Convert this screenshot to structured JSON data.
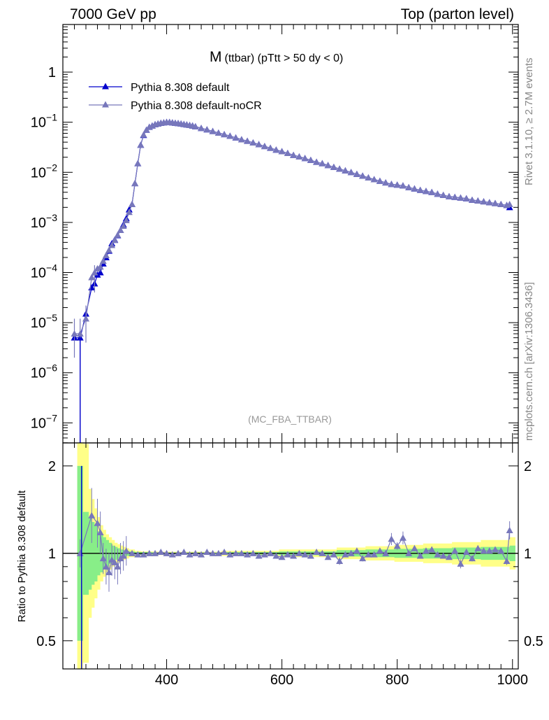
{
  "header": {
    "left": "7000 GeV pp",
    "right": "Top (parton level)"
  },
  "side_labels": {
    "rivet": "Rivet 3.1.10, ≥ 2.7M events",
    "mcplots": "mcplots.cern.ch [arXiv:1306.3436]"
  },
  "chart_data": [
    {
      "type": "line",
      "title_main": "M",
      "title_sub": "(ttbar) (pTtt > 50 dy < 0)",
      "watermark": "(MC_FBA_TTBAR)",
      "log_y": true,
      "xlim": [
        220,
        1010
      ],
      "ylim_exp": [
        -7.4,
        0.95
      ],
      "y_tick_labels": [
        {
          "exp": -7,
          "base": "10",
          "sup": "−7"
        },
        {
          "exp": -6,
          "base": "10",
          "sup": "−6"
        },
        {
          "exp": -5,
          "base": "10",
          "sup": "−5"
        },
        {
          "exp": -4,
          "base": "10",
          "sup": "−4"
        },
        {
          "exp": -3,
          "base": "10",
          "sup": "−3"
        },
        {
          "exp": -2,
          "base": "10",
          "sup": "−2"
        },
        {
          "exp": -1,
          "base": "10",
          "sup": "−1"
        },
        {
          "exp": 0,
          "base": "1",
          "sup": ""
        }
      ],
      "legend_position": "top-left",
      "series": [
        {
          "name": "Pythia 8.308 default",
          "color": "#0000cc",
          "marker": "triangle",
          "x": [
            240,
            250,
            260,
            270,
            275,
            280,
            285,
            290,
            295,
            300,
            305,
            310,
            315,
            320,
            325,
            330,
            335,
            340,
            345,
            350,
            355,
            360,
            365,
            370,
            375,
            380,
            385,
            390,
            395,
            400,
            405,
            410,
            415,
            420,
            425,
            430,
            435,
            440,
            445,
            450,
            460,
            470,
            480,
            490,
            500,
            510,
            520,
            530,
            540,
            550,
            560,
            570,
            580,
            590,
            600,
            610,
            620,
            630,
            640,
            650,
            660,
            670,
            680,
            690,
            700,
            710,
            720,
            730,
            740,
            750,
            760,
            770,
            780,
            790,
            800,
            810,
            820,
            830,
            840,
            850,
            860,
            870,
            880,
            890,
            900,
            910,
            920,
            930,
            940,
            950,
            960,
            970,
            980,
            990,
            995
          ],
          "y": [
            5e-06,
            5e-06,
            1.5e-05,
            5e-05,
            6e-05,
            9e-05,
            0.0001,
            0.00015,
            0.0002,
            0.00027,
            0.00038,
            0.00045,
            0.00055,
            0.0007,
            0.0009,
            0.0012,
            0.0018,
            0.0023,
            0.006,
            0.015,
            0.035,
            0.055,
            0.07,
            0.08,
            0.085,
            0.09,
            0.093,
            0.096,
            0.098,
            0.1,
            0.1,
            0.098,
            0.096,
            0.095,
            0.093,
            0.091,
            0.089,
            0.087,
            0.085,
            0.082,
            0.076,
            0.071,
            0.066,
            0.061,
            0.057,
            0.053,
            0.049,
            0.045,
            0.042,
            0.039,
            0.036,
            0.033,
            0.0305,
            0.028,
            0.026,
            0.024,
            0.022,
            0.0205,
            0.019,
            0.0175,
            0.016,
            0.015,
            0.0138,
            0.0127,
            0.0117,
            0.0108,
            0.01,
            0.0092,
            0.0085,
            0.0078,
            0.0072,
            0.0067,
            0.0062,
            0.0058,
            0.0056,
            0.0054,
            0.005,
            0.0047,
            0.0044,
            0.0042,
            0.004,
            0.0037,
            0.0035,
            0.0033,
            0.0032,
            0.0031,
            0.003,
            0.0028,
            0.0027,
            0.0026,
            0.0025,
            0.0024,
            0.0023,
            0.0022,
            0.002
          ]
        },
        {
          "name": "Pythia 8.308 default-noCR",
          "color": "#7777bb",
          "marker": "triangle",
          "x": [
            240,
            250,
            260,
            270,
            275,
            280,
            285,
            290,
            295,
            300,
            305,
            310,
            315,
            320,
            325,
            330,
            335,
            340,
            345,
            350,
            355,
            360,
            365,
            370,
            375,
            380,
            385,
            390,
            395,
            400,
            405,
            410,
            415,
            420,
            425,
            430,
            435,
            440,
            445,
            450,
            460,
            470,
            480,
            490,
            500,
            510,
            520,
            530,
            540,
            550,
            560,
            570,
            580,
            590,
            600,
            610,
            620,
            630,
            640,
            650,
            660,
            670,
            680,
            690,
            700,
            710,
            720,
            730,
            740,
            750,
            760,
            770,
            780,
            790,
            800,
            810,
            820,
            830,
            840,
            850,
            860,
            870,
            880,
            890,
            900,
            910,
            920,
            930,
            940,
            950,
            960,
            970,
            980,
            990,
            995
          ],
          "y": [
            6e-06,
            6e-06,
            1.2e-05,
            8e-05,
            0.0001,
            0.00012,
            0.00013,
            0.00017,
            0.00022,
            0.00028,
            0.00035,
            0.00044,
            0.00056,
            0.0007,
            0.00085,
            0.0011,
            0.0016,
            0.0023,
            0.006,
            0.015,
            0.035,
            0.056,
            0.07,
            0.08,
            0.085,
            0.09,
            0.093,
            0.096,
            0.098,
            0.1,
            0.1,
            0.098,
            0.096,
            0.095,
            0.093,
            0.091,
            0.089,
            0.087,
            0.085,
            0.082,
            0.076,
            0.071,
            0.066,
            0.061,
            0.057,
            0.053,
            0.049,
            0.045,
            0.042,
            0.039,
            0.036,
            0.033,
            0.0305,
            0.028,
            0.026,
            0.024,
            0.022,
            0.0205,
            0.019,
            0.0175,
            0.016,
            0.015,
            0.0138,
            0.0127,
            0.0117,
            0.0108,
            0.01,
            0.0092,
            0.0085,
            0.0078,
            0.0072,
            0.0067,
            0.0062,
            0.0058,
            0.0056,
            0.0054,
            0.005,
            0.0047,
            0.0044,
            0.0042,
            0.004,
            0.0037,
            0.0035,
            0.0033,
            0.0032,
            0.0031,
            0.003,
            0.0028,
            0.0027,
            0.0026,
            0.0025,
            0.0024,
            0.0023,
            0.0022,
            0.0023
          ]
        }
      ]
    },
    {
      "type": "line",
      "ylabel": "Ratio to Pythia 8.308 default",
      "log_y": true,
      "xlim": [
        220,
        1010
      ],
      "ylim": [
        0.4,
        2.4
      ],
      "x_tick_labels": [
        "400",
        "600",
        "800",
        "1000"
      ],
      "x_ticks": [
        400,
        600,
        800,
        1000
      ],
      "y_tick_labels": [
        "0.5",
        "1",
        "2"
      ],
      "y_ticks": [
        0.5,
        1,
        2
      ],
      "reference_line": 1,
      "band_colors": {
        "inner": "#88ee88",
        "outer": "#ffff88"
      },
      "bands": {
        "x": [
          250,
          260,
          270,
          275,
          280,
          285,
          290,
          295,
          300,
          305,
          310,
          315,
          320,
          325,
          330,
          335,
          340,
          350,
          360,
          370,
          380,
          390,
          400,
          500,
          600,
          700,
          750,
          800,
          850,
          900,
          950,
          1000
        ],
        "inner": [
          2.0,
          0.72,
          0.75,
          0.78,
          0.8,
          0.84,
          0.86,
          0.88,
          0.9,
          0.92,
          0.94,
          0.95,
          0.96,
          0.97,
          0.975,
          0.98,
          0.985,
          0.99,
          0.99,
          0.99,
          0.992,
          0.993,
          0.993,
          0.99,
          0.985,
          0.975,
          0.97,
          0.965,
          0.96,
          0.955,
          0.95,
          0.94
        ],
        "outer": [
          2.6,
          0.42,
          0.6,
          0.65,
          0.7,
          0.75,
          0.8,
          0.83,
          0.86,
          0.88,
          0.9,
          0.92,
          0.93,
          0.94,
          0.95,
          0.96,
          0.97,
          0.98,
          0.985,
          0.985,
          0.986,
          0.987,
          0.988,
          0.98,
          0.97,
          0.955,
          0.945,
          0.935,
          0.925,
          0.915,
          0.9,
          0.88
        ]
      },
      "series": [
        {
          "name": "Pythia 8.308 default-noCR",
          "color": "#7777bb",
          "x": [
            250,
            270,
            280,
            285,
            290,
            295,
            300,
            305,
            310,
            315,
            320,
            325,
            330,
            340,
            350,
            360,
            370,
            380,
            390,
            400,
            410,
            420,
            430,
            440,
            450,
            460,
            470,
            480,
            490,
            500,
            510,
            520,
            530,
            540,
            550,
            560,
            570,
            580,
            590,
            600,
            610,
            620,
            630,
            640,
            650,
            660,
            670,
            680,
            690,
            700,
            710,
            720,
            730,
            740,
            750,
            760,
            770,
            780,
            790,
            800,
            810,
            820,
            830,
            840,
            850,
            860,
            870,
            880,
            890,
            900,
            910,
            920,
            930,
            940,
            950,
            960,
            970,
            980,
            990,
            995
          ],
          "y": [
            1.0,
            1.35,
            1.27,
            1.18,
            0.96,
            0.9,
            0.86,
            0.95,
            0.93,
            0.9,
            0.96,
            0.98,
            1.02,
            1.0,
            0.99,
            0.99,
            1.0,
            1.0,
            1.01,
            1.0,
            0.99,
            1.0,
            1.01,
            0.99,
            1.0,
            0.99,
            1.01,
            1.0,
            1.0,
            1.01,
            0.99,
            1.0,
            1.0,
            0.99,
            1.0,
            0.98,
            0.99,
            1.0,
            0.98,
            0.97,
            0.99,
            0.98,
            1.0,
            0.99,
            0.98,
            1.01,
            1.0,
            0.97,
            0.99,
            0.94,
            0.99,
            1.0,
            1.02,
            0.96,
            0.99,
            0.99,
            1.02,
            1.0,
            1.12,
            1.06,
            1.13,
            1.0,
            1.04,
            0.98,
            1.02,
            1.03,
            0.99,
            0.98,
            0.97,
            1.02,
            0.92,
            1.01,
            0.96,
            1.04,
            1.02,
            1.02,
            1.03,
            1.02,
            0.94,
            1.2
          ]
        }
      ]
    }
  ]
}
